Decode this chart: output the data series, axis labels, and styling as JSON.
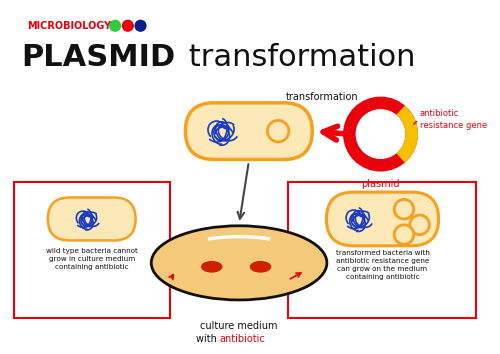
{
  "title_micro": "MICROBIOLOGY",
  "title_main_bold": "PLASMID",
  "title_main_rest": " transformation",
  "bg_color": "#ffffff",
  "bacteria_fill": "#fde8b8",
  "bacteria_stroke": "#f5a020",
  "plasmid_fill": "#fde8b8",
  "plasmid_ring_color": "#e8000d",
  "plasmid_gene_color": "#f5c000",
  "dna_color": "#1a3bbf",
  "arrow_color": "#e8000d",
  "box_color": "#e8000d",
  "plate_fill": "#f5c97a",
  "plate_edge": "#111111",
  "plate_shadow": "#d4a030",
  "colony_color": "#cc2200",
  "label_transformation": "transformation",
  "label_antibiotic_gene": "antibiotic\nresistance gene",
  "label_plasmid": "plasmid",
  "label_culture_1": "culture medium",
  "label_culture_2": "with ",
  "label_culture_3": "antibiotic",
  "label_wildtype": "wild type bacteria cannot\ngrow in culture medium\ncontaining antibiotic",
  "label_transformed": "transformed bacteria with\nantibiotic resistance gene\ncan grow on the medium\ncontaining antibiotic",
  "micro_dots": [
    {
      "color": "#2ecc40"
    },
    {
      "color": "#e8000d"
    },
    {
      "color": "#001f8b"
    }
  ]
}
